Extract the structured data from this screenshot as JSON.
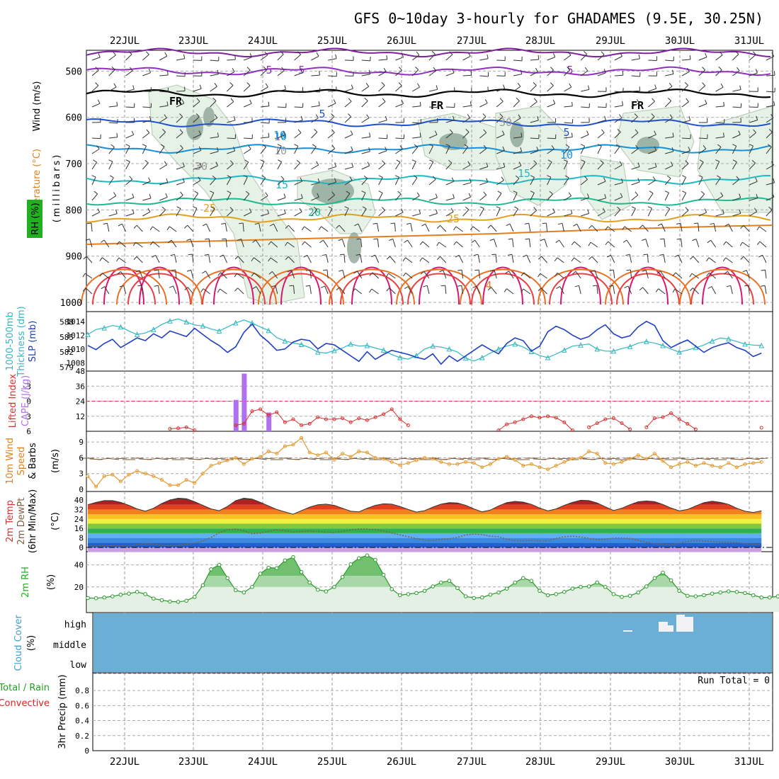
{
  "title": "GFS 0~10day 3-hourly for GHADAMES (9.5E, 30.25N)",
  "run_total": "Run Total = 0",
  "colors": {
    "rh_fill": "#e6f2e6",
    "rh_mid": "#a9c9a9",
    "rh_dark": "#7f9a88",
    "sky": "#6baed6",
    "cloud_white": "#f2f2f5",
    "slp": "#2040c0",
    "thick": "#30b8c0",
    "cape": "#b070f0",
    "li": "#d83030",
    "speed": "#e39a30",
    "barb": "#4a4a4a",
    "dewpt": "#806040",
    "rh2m": "#2a9a2a",
    "rh2m_fill": "#e4f0e4",
    "axis_purple": "#9030c0",
    "axis_red": "#e02020",
    "axis_orange": "#e08020",
    "axis_teal": "#20b0c0",
    "axis_blue": "#2050d0",
    "axis_green": "#20b020"
  },
  "panel_labels": {
    "upper": {
      "wind": "Wind (m/s)",
      "temp": "Temperature (°C)",
      "rh": "RH (%)",
      "mb": "(millibars)"
    },
    "slp": {
      "thick": "1000-500mb",
      "thick2": "Thickness (dm)",
      "slp": "SLP (mb)"
    },
    "cape": {
      "li": "Lifted Index",
      "cape": "CAPE (J/kg)"
    },
    "wind10": {
      "a": "10m Wind",
      "b": "Speed",
      "c": "& Barbs",
      "d": "(m/s)"
    },
    "temp2m": {
      "a": "2m Temp",
      "b": "2m DewPt",
      "c": "(6hr Min/Max)",
      "d": "(°C)"
    },
    "rh2m": {
      "a": "2m RH",
      "b": "(%)"
    },
    "cloud": {
      "a": "Cloud Cover",
      "b": "(%)"
    },
    "precip": {
      "a": "Total / Rain",
      "b": "Convective",
      "c": "3hr Precip (mm)"
    }
  },
  "x_axis": {
    "dates": [
      "22JUL",
      "23JUL",
      "24JUL",
      "25JUL",
      "26JUL",
      "27JUL",
      "28JUL",
      "29JUL",
      "30JUL",
      "31JUL"
    ]
  },
  "chart_data": [
    {
      "type": "area",
      "panel": "upper-air cross section",
      "ylabel": "(millibars)",
      "y_ticks": [
        500,
        600,
        700,
        800,
        900,
        1000
      ],
      "contour_labels": [
        "5",
        "5",
        "5",
        "FR",
        "FR",
        "FR",
        "5",
        "5",
        "10",
        "10",
        "10",
        "15",
        "15",
        "20",
        "25",
        "25",
        "30",
        "30",
        "10",
        "4"
      ],
      "temperature_levels_mb": {
        "-10": 460,
        "-5": 500,
        "0": 548,
        "5": 612,
        "10": 668,
        "15": 735,
        "20": 782,
        "25": 818
      }
    },
    {
      "type": "line",
      "panel": "sea level pressure and thickness",
      "left_ticks": [
        579,
        582,
        585,
        588
      ],
      "right_ticks": [
        1008,
        1010,
        1012,
        1014
      ],
      "series": [
        {
          "name": "SLP (mb)",
          "values": [
            1010.5,
            1009.9,
            1010.8,
            1011.4,
            1010.2,
            1010.9,
            1011.6,
            1011.2,
            1012.2,
            1011.6,
            1012.6,
            1012.2,
            1011.8,
            1013.0,
            1012.1,
            1011.2,
            1010.5,
            1009.5,
            1010.3,
            1012.4,
            1013.6,
            1012.0,
            1011.0,
            1009.8,
            1010.0,
            1011.0,
            1011.4,
            1011.2,
            1010.0,
            1010.8,
            1010.6,
            1009.8,
            1009.0,
            1008.2,
            1009.6,
            1008.5,
            1009.2,
            1009.8,
            1009.5,
            1009.2,
            1008.8,
            1008.5,
            1009.3,
            1007.8,
            1009.0,
            1008.2,
            1009.0,
            1009.8,
            1010.6,
            1009.9,
            1009.3,
            1010.8,
            1011.6,
            1011.2,
            1009.7,
            1010.4,
            1012.5,
            1013.3,
            1012.8,
            1012.0,
            1011.4,
            1011.8,
            1012.8,
            1013.5,
            1012.2,
            1011.6,
            1011.9,
            1013.2,
            1014.0,
            1013.4,
            1011.2,
            1010.2,
            1010.8,
            1011.3,
            1010.4,
            1009.5,
            1010.2,
            1010.6,
            1010.9,
            1010.2,
            1009.8,
            1008.9,
            1009.4
          ]
        },
        {
          "name": "1000-500mb Thickness (dm)",
          "values": [
            585.5,
            586.5,
            586.8,
            587.3,
            587.0,
            586.2,
            585.5,
            585.8,
            586.5,
            587.5,
            588.2,
            588.6,
            588.0,
            587.4,
            587.2,
            586.6,
            586.2,
            587.0,
            587.8,
            588.4,
            587.8,
            587.0,
            586.3,
            584.9,
            584.2,
            583.8,
            583.5,
            582.9,
            582.0,
            581.8,
            582.3,
            582.8,
            583.6,
            583.2,
            583.3,
            582.8,
            582.4,
            581.5,
            580.9,
            580.6,
            581.3,
            582.6,
            583.2,
            583.0,
            582.6,
            582.0,
            580.8,
            580.2,
            580.9,
            581.8,
            582.6,
            583.2,
            583.6,
            583.0,
            582.1,
            581.3,
            580.9,
            581.6,
            582.4,
            583.2,
            583.4,
            583.6,
            582.6,
            582.2,
            582.2,
            582.7,
            583.1,
            583.8,
            584.1,
            583.8,
            583.3,
            582.6,
            582.0,
            582.4,
            582.9,
            583.4,
            584.2,
            584.8,
            584.6,
            584.1,
            583.6,
            583.4,
            583.3
          ]
        }
      ]
    },
    {
      "type": "bar",
      "panel": "CAPE and Lifted Index",
      "cape_ticks": [
        12,
        24,
        36,
        48
      ],
      "li_ticks": [
        -3,
        0,
        3,
        6
      ],
      "series": [
        {
          "name": "CAPE (J/kg)",
          "values": [
            0,
            0,
            0,
            0,
            0,
            0,
            0,
            0,
            0,
            0,
            0,
            0,
            0,
            0,
            0,
            0,
            0,
            0,
            25,
            46,
            0,
            0,
            15,
            0,
            0,
            0,
            0,
            0,
            0,
            0,
            0,
            0,
            0,
            0,
            0,
            0,
            0,
            0,
            0,
            0,
            0,
            0,
            0,
            0,
            0,
            0,
            0,
            0,
            0,
            0,
            0,
            0,
            0,
            0,
            0,
            0,
            0,
            0,
            0,
            0,
            0,
            0,
            0,
            0,
            0,
            0,
            0,
            0,
            0,
            0,
            0,
            0,
            0,
            0,
            0,
            0,
            0,
            0,
            0,
            0,
            0,
            0,
            0,
            0
          ]
        },
        {
          "name": "Lifted Index",
          "values": [
            6,
            6,
            6,
            6,
            6,
            6,
            6,
            6,
            6,
            6,
            5.5,
            5.4,
            5.2,
            5.8,
            6,
            6,
            6,
            6,
            4.8,
            4.5,
            2.0,
            1.6,
            2.8,
            2.2,
            4.2,
            3.6,
            4.8,
            4.5,
            3.2,
            3.6,
            3.6,
            3.4,
            4.2,
            3.4,
            3.8,
            3.2,
            2.6,
            1.6,
            3.6,
            4.8,
            6,
            6,
            6,
            6,
            6,
            6,
            6,
            6,
            6,
            6,
            5.8,
            4.6,
            4.2,
            3.6,
            3.0,
            3.3,
            3.0,
            3.3,
            4.2,
            5.8,
            6,
            5.2,
            4.4,
            3.6,
            3.4,
            4.4,
            5.6,
            6,
            5.2,
            3.4,
            3.2,
            2.4,
            3.6,
            4.5,
            5.6,
            6,
            6,
            6,
            6,
            6,
            6,
            6,
            5.3
          ]
        }
      ]
    },
    {
      "type": "line",
      "panel": "10m wind speed",
      "y_ticks": [
        0,
        3,
        6,
        9
      ],
      "series": [
        {
          "name": "Speed",
          "values": [
            2.5,
            0.5,
            2.5,
            2.8,
            1.5,
            2.8,
            3.5,
            3.0,
            2.5,
            1.8,
            0.8,
            0.8,
            1.8,
            1.2,
            3.0,
            4.5,
            5.0,
            5.5,
            6.0,
            4.8,
            5.8,
            6.2,
            7.2,
            6.8,
            8.2,
            8.5,
            9.8,
            7.0,
            6.5,
            7.0,
            5.6,
            6.8,
            6.2,
            7.2,
            7.0,
            6.0,
            5.8,
            5.2,
            4.6,
            5.0,
            5.5,
            6.0,
            5.8,
            5.2,
            4.8,
            4.8,
            5.2,
            5.0,
            4.2,
            4.8,
            5.8,
            6.2,
            5.6,
            4.5,
            4.8,
            4.2,
            3.8,
            4.5,
            5.2,
            5.8,
            6.0,
            7.2,
            6.8,
            5.0,
            4.8,
            5.2,
            5.8,
            6.5,
            5.8,
            6.8,
            5.4,
            4.2,
            4.8,
            5.2,
            4.5,
            5.0,
            4.5,
            4.2,
            5.0,
            4.2,
            4.8,
            5.0,
            5.2
          ]
        }
      ]
    },
    {
      "type": "area",
      "panel": "2m temperature and dew point",
      "y_ticks": [
        0,
        8,
        16,
        24,
        32,
        40
      ],
      "series": [
        {
          "name": "2m Temp",
          "values": [
            36,
            38,
            39.5,
            39.5,
            38,
            35.5,
            32.5,
            30.5,
            33,
            37,
            40,
            41.5,
            41,
            38.5,
            35.5,
            32.5,
            31,
            34.5,
            39.5,
            41.5,
            40.8,
            38,
            35,
            32,
            30,
            28,
            31,
            34,
            36,
            36.5,
            35.5,
            33,
            30.5,
            30,
            33,
            35.5,
            36.8,
            36.5,
            34.5,
            32,
            29.8,
            31,
            34,
            36.5,
            37.8,
            37.5,
            35.5,
            32.5,
            30,
            31.5,
            35,
            37.8,
            38.8,
            38.2,
            36.3,
            33.2,
            30.8,
            32.5,
            35.5,
            38,
            39.8,
            39.5,
            37.5,
            34.2,
            31.2,
            33,
            36,
            38.5,
            39.2,
            38.6,
            36.2,
            33.2,
            30.8,
            32,
            35,
            37.8,
            39,
            38,
            36.3,
            33,
            30.5,
            29.5,
            30.8
          ]
        },
        {
          "name": "2m DewPt",
          "values": [
            1,
            1.2,
            1.4,
            1.4,
            1.2,
            1.1,
            2.5,
            3.0,
            2.6,
            1.7,
            1.5,
            1.6,
            2.5,
            3.5,
            5.5,
            8.5,
            12.5,
            15.0,
            15.5,
            14.0,
            11.5,
            12.2,
            13.5,
            14.8,
            14.2,
            13.0,
            13.5,
            14.0,
            13.5,
            12.8,
            12.5,
            13.5,
            14.8,
            15.5,
            15.5,
            15.0,
            14.0,
            12.2,
            10.5,
            9.0,
            7.5,
            6.2,
            6.0,
            6.8,
            7.2,
            8.5,
            10.5,
            11.2,
            10.8,
            9.5,
            9.0,
            7.0,
            5.8,
            5.5,
            6.0,
            5.5,
            5.8,
            7.5,
            9.0,
            9.5,
            8.8,
            7.6,
            6.5,
            7.0,
            7.8,
            8.0,
            7.5,
            6.0,
            4.5,
            3.2,
            2.5,
            2.0,
            3.5,
            5.0,
            5.8,
            5.5,
            5.0,
            4.5,
            4.5,
            4.2,
            3.2,
            2.5,
            2.8
          ]
        }
      ]
    },
    {
      "type": "area",
      "panel": "2m relative humidity",
      "y_ticks": [
        20,
        40
      ],
      "series": [
        {
          "name": "2m RH",
          "values": [
            10,
            9.8,
            10.5,
            11.5,
            13,
            14,
            15.5,
            13.5,
            9.5,
            8,
            6.8,
            6.5,
            7.5,
            11,
            21.5,
            36,
            40,
            28,
            17,
            15,
            20,
            32,
            37.5,
            37,
            44,
            47,
            33.5,
            24,
            17.5,
            16,
            20,
            29,
            40.5,
            46,
            48.5,
            44.5,
            31,
            18,
            12.5,
            13.5,
            14.5,
            16.5,
            20.5,
            24,
            25.5,
            19,
            11.5,
            10,
            10.5,
            13,
            15,
            18.5,
            24,
            28,
            25.5,
            16.5,
            12.5,
            13.5,
            15.5,
            18.5,
            20,
            20.5,
            24,
            20,
            13.5,
            11,
            12,
            15,
            20.5,
            28,
            33,
            26,
            16.5,
            12,
            11.5,
            12.5,
            14,
            15,
            16,
            15.5,
            14.5,
            12.5,
            10.5,
            10.5,
            11.5,
            13,
            14.5,
            16.5,
            16.5
          ]
        }
      ]
    },
    {
      "type": "bar",
      "panel": "cloud cover",
      "y_ticks": [
        "high",
        "middle",
        "low"
      ],
      "series": [
        {
          "name": "Cloud Cover",
          "values": [
            "high: 29JUL 03Z small",
            "high: 29JUL 18Z",
            "high: 30JUL 00Z–06Z"
          ]
        }
      ]
    },
    {
      "type": "bar",
      "panel": "3hr precipitation",
      "ylabel": "3hr Precip (mm)",
      "y_ticks": [
        0,
        0.2,
        0.4,
        0.6,
        0.8
      ],
      "ylim": [
        0,
        0.98
      ],
      "series": [
        {
          "name": "Total / Rain",
          "values": []
        },
        {
          "name": "Convective",
          "values": []
        }
      ]
    }
  ]
}
